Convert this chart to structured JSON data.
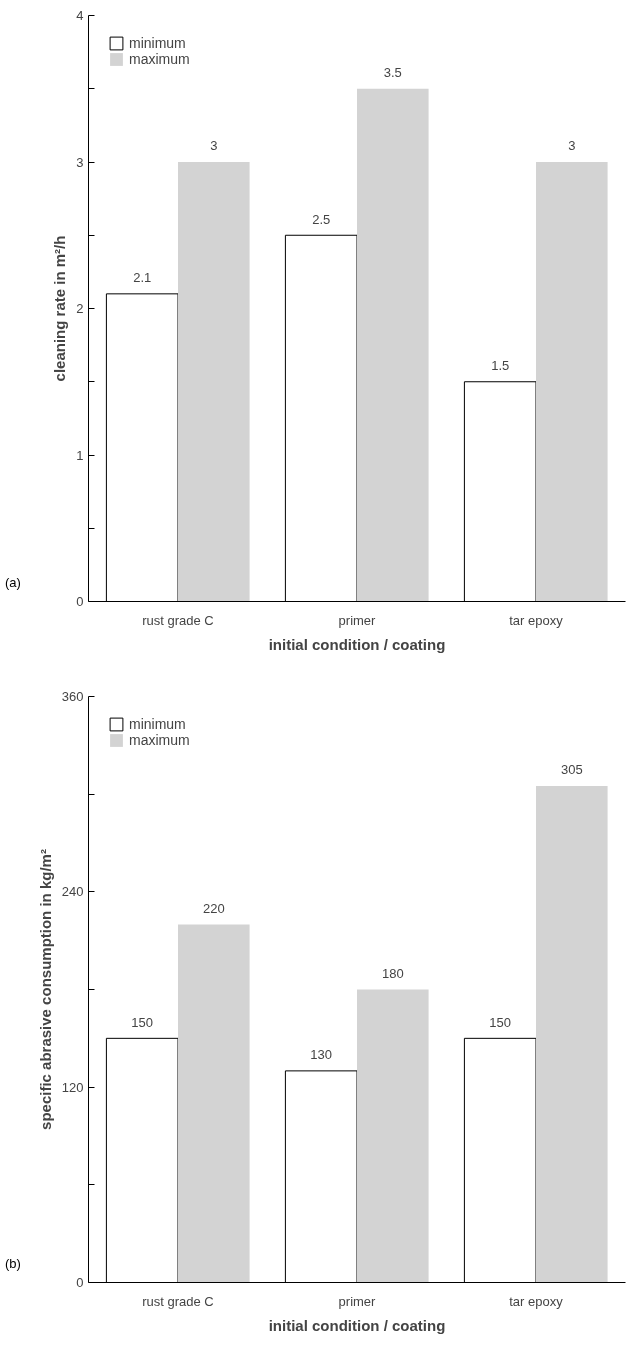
{
  "chart_data": [
    {
      "type": "bar",
      "xlabel": "initial condition / coating",
      "ylabel": "cleaning rate in m²/h",
      "categories": [
        "rust grade C",
        "primer",
        "tar epoxy"
      ],
      "series": [
        {
          "name": "minimum",
          "color": "#ffffff",
          "values": [
            2.1,
            2.5,
            1.5
          ]
        },
        {
          "name": "maximum",
          "color": "#d3d3d3",
          "values": [
            3,
            3.5,
            3
          ]
        }
      ],
      "ylim": [
        0,
        4
      ],
      "yticks": [
        0,
        {
          "value": 0.5,
          "label": null
        },
        1,
        {
          "value": 1.5,
          "label": null
        },
        2,
        {
          "value": 2.5,
          "label": null
        },
        3,
        {
          "value": 3.5,
          "label": null
        },
        4
      ],
      "data_labels": true,
      "legend": "top left",
      "grid": false,
      "annotations": [
        "(a)"
      ]
    },
    {
      "type": "bar",
      "xlabel": "initial condition / coating",
      "ylabel": "specific abrasive consumption in kg/m²",
      "categories": [
        "rust grade C",
        "primer",
        "tar epoxy"
      ],
      "series": [
        {
          "name": "minimum",
          "color": "#ffffff",
          "values": [
            150,
            130,
            150
          ]
        },
        {
          "name": "maximum",
          "color": "#d3d3d3",
          "values": [
            220,
            180,
            305
          ]
        }
      ],
      "ylim": [
        0,
        360
      ],
      "yticks": [
        0,
        {
          "value": 60,
          "label": null
        },
        120,
        {
          "value": 180,
          "label": null
        },
        240,
        {
          "value": 300,
          "label": null
        },
        360
      ],
      "data_labels": true,
      "legend": "top left",
      "grid": false,
      "annotations": [
        "(b)"
      ]
    }
  ]
}
